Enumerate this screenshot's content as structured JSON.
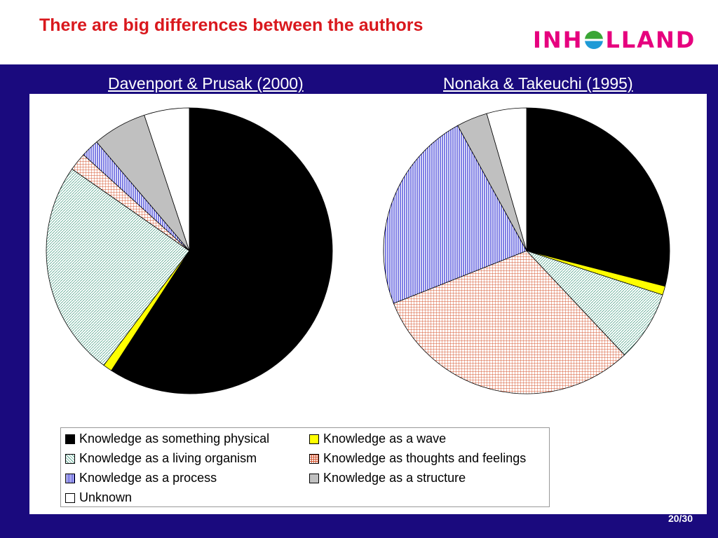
{
  "header": {
    "title": "There are big differences between the authors",
    "logo_letters_left": "INH",
    "logo_letters_right": "LLAND",
    "title_color": "#d9181d",
    "logo_color": "#e6007e",
    "band_color": "#1a0a7e"
  },
  "chart_data": [
    {
      "type": "pie",
      "title": "Davenport & Prusak (2000)",
      "categories": [
        "Knowledge as something physical",
        "Knowledge as a wave",
        "Knowledge as a living organism",
        "Knowledge as thoughts and feelings",
        "Knowledge as a process",
        "Knowledge as a structure",
        "Unknown"
      ],
      "values": [
        58,
        1,
        24,
        2,
        2,
        6,
        5
      ]
    },
    {
      "type": "pie",
      "title": "Nonaka & Takeuchi (1995)",
      "categories": [
        "Knowledge as something physical",
        "Knowledge as a wave",
        "Knowledge as a living organism",
        "Knowledge as thoughts and feelings",
        "Knowledge as a process",
        "Knowledge as a structure",
        "Unknown"
      ],
      "values": [
        29,
        1,
        8,
        31,
        23,
        3.5,
        4.5
      ]
    }
  ],
  "legend": {
    "items": [
      {
        "label": "Knowledge as something physical",
        "color": "#000000",
        "pattern": "solid"
      },
      {
        "label": "Knowledge as a wave",
        "color": "#ffff00",
        "pattern": "solid"
      },
      {
        "label": "Knowledge as a living organism",
        "color": "#a8d8c8",
        "pattern": "diagonal"
      },
      {
        "label": "Knowledge as thoughts and feelings",
        "color": "#d4502a",
        "pattern": "grid"
      },
      {
        "label": "Knowledge as a process",
        "color": "#2a2ad4",
        "pattern": "vertical"
      },
      {
        "label": "Knowledge as a structure",
        "color": "#c0c0c0",
        "pattern": "solid"
      },
      {
        "label": "Unknown",
        "color": "#ffffff",
        "pattern": "solid"
      }
    ]
  },
  "footer": {
    "page": "20/30"
  }
}
